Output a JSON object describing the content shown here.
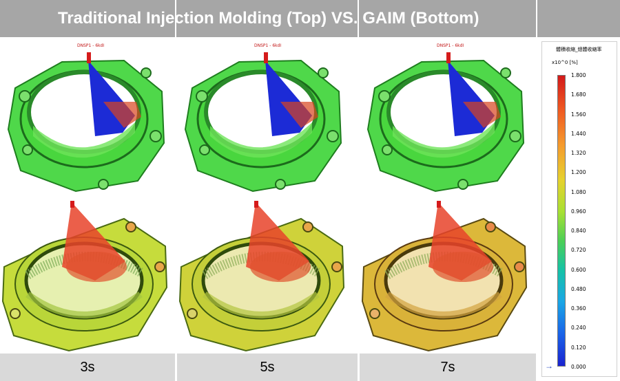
{
  "header": {
    "title": "Traditional Injection Molding (Top) VS. GAIM (Bottom)"
  },
  "columns": [
    {
      "time_label": "3s",
      "top_label": "DNSP1 - 6kdI"
    },
    {
      "time_label": "5s",
      "top_label": "DNSP1 - 6kdI"
    },
    {
      "time_label": "7s",
      "top_label": "DNSP1 - 6kdI"
    }
  ],
  "legend": {
    "title": "體積收縮_總體收縮率",
    "unit_label": "x10^0  [%]",
    "ticks": [
      "1.800",
      "1.680",
      "1.560",
      "1.440",
      "1.320",
      "1.200",
      "1.080",
      "0.960",
      "0.840",
      "0.720",
      "0.600",
      "0.480",
      "0.360",
      "0.240",
      "0.120",
      "0.000"
    ]
  },
  "colors": {
    "header_bg": "#a6a6a6",
    "footer_bg": "#d9d9d9",
    "top_part": "#3fd83a",
    "cone_top": "#1c2bd6",
    "bottom_part": "#c7d93a",
    "cone_bottom": "#e8432a"
  }
}
